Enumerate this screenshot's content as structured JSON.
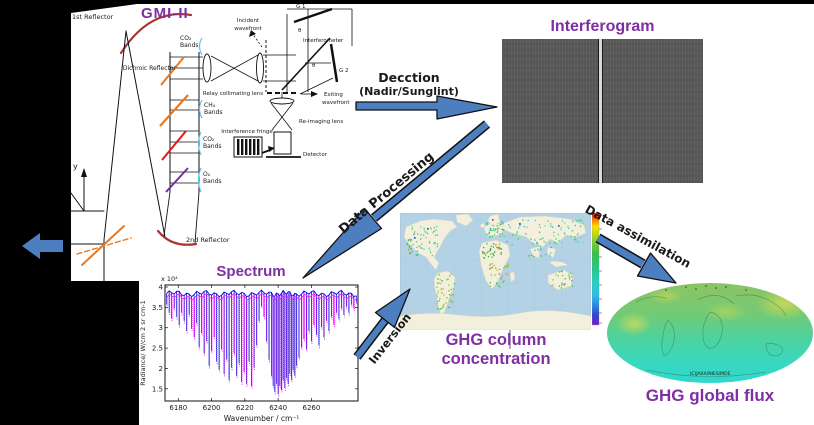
{
  "titles": {
    "interferogram": "Interferogram",
    "spectrum": "Spectrum",
    "ghg_column": "GHG column concentration",
    "ghg_flux": "GHG global flux"
  },
  "arrows": {
    "detection_line1": "Decction",
    "detection_line2": "(Nadir/Sunglint)",
    "data_processing": "Data Processing",
    "inversion": "Inversion",
    "assimilation": "Data assimilation"
  },
  "instrument": {
    "title": "GMI-II",
    "first_reflector": "1st Reflector",
    "second_reflector": "2nd Reflector",
    "dichroic_reflector": "Dichroic Reflector",
    "axis_y": "y",
    "bands": {
      "co2_top": [
        "CO₂",
        "Bands"
      ],
      "ch4": [
        "CH₄",
        "Bands"
      ],
      "co2_mid": [
        "CO₂",
        "Bands"
      ],
      "o2": [
        "O₂",
        "Bands"
      ]
    },
    "relay_lens": "Relay collimating lens",
    "incident": [
      "Incident",
      "wavefront"
    ],
    "exiting": [
      "Exiting",
      "wavefront"
    ],
    "interferometer": "Interferometer",
    "grating1": "G 1",
    "grating2": "G 2",
    "theta": "θ",
    "reimaging_lens": "Re-imaging lens",
    "fringe": "Interference fringe",
    "detector": "Detector"
  },
  "chart_data": {
    "type": "line",
    "title": "Spectrum",
    "xlabel": "Wavenumber / cm⁻¹",
    "ylabel": "Radiance/ W/cm 2 sr cm-1",
    "scale_label": "x 10⁴",
    "xlim": [
      6172,
      6288
    ],
    "ylim": [
      1.2,
      4.05
    ],
    "xticks": [
      6180,
      6200,
      6220,
      6240,
      6260
    ],
    "yticks": [
      1.5,
      2,
      2.5,
      3,
      3.5,
      4
    ],
    "baseline": 3.8,
    "colors": {
      "blue": "#0b0be0",
      "magenta": "#f816f8"
    },
    "lines": [
      [
        6173,
        3.5
      ],
      [
        6174.5,
        3.3
      ],
      [
        6176,
        3.15
      ],
      [
        6177.5,
        3.4
      ],
      [
        6179,
        3.2
      ],
      [
        6180.5,
        3.0
      ],
      [
        6182,
        3.3
      ],
      [
        6183.5,
        3.1
      ],
      [
        6185,
        2.85
      ],
      [
        6186.5,
        3.25
      ],
      [
        6188,
        2.9
      ],
      [
        6189.5,
        2.7
      ],
      [
        6191,
        3.05
      ],
      [
        6192.5,
        2.45
      ],
      [
        6194,
        2.8
      ],
      [
        6195.5,
        2.3
      ],
      [
        6197,
        2.6
      ],
      [
        6198.5,
        2.0
      ],
      [
        6200,
        2.35
      ],
      [
        6201.5,
        2.7
      ],
      [
        6203,
        2.1
      ],
      [
        6204.5,
        1.9
      ],
      [
        6206,
        2.4
      ],
      [
        6207.5,
        1.8
      ],
      [
        6209,
        2.15
      ],
      [
        6210.5,
        1.65
      ],
      [
        6212,
        1.95
      ],
      [
        6213.5,
        2.3
      ],
      [
        6215,
        1.75
      ],
      [
        6216.5,
        2.05
      ],
      [
        6218,
        1.6
      ],
      [
        6219.5,
        1.85
      ],
      [
        6221,
        1.55
      ],
      [
        6222.5,
        2.1
      ],
      [
        6224,
        1.5
      ],
      [
        6225.5,
        1.95
      ],
      [
        6227,
        2.5
      ],
      [
        6228.5,
        3.1
      ],
      [
        6230,
        3.45
      ],
      [
        6231.5,
        3.2
      ],
      [
        6233,
        2.6
      ],
      [
        6234.5,
        2.15
      ],
      [
        6236,
        1.75
      ],
      [
        6237,
        1.5
      ],
      [
        6238,
        1.35
      ],
      [
        6239,
        1.55
      ],
      [
        6240,
        1.3
      ],
      [
        6241,
        1.5
      ],
      [
        6242,
        1.4
      ],
      [
        6243,
        1.65
      ],
      [
        6244,
        1.45
      ],
      [
        6245,
        1.7
      ],
      [
        6246,
        1.55
      ],
      [
        6247,
        1.8
      ],
      [
        6248,
        1.65
      ],
      [
        6249,
        1.9
      ],
      [
        6250,
        1.75
      ],
      [
        6251,
        2.0
      ],
      [
        6252.5,
        2.2
      ],
      [
        6254,
        2.45
      ],
      [
        6255.5,
        2.65
      ],
      [
        6257,
        2.4
      ],
      [
        6258.5,
        2.85
      ],
      [
        6260,
        2.6
      ],
      [
        6261.5,
        3.0
      ],
      [
        6263,
        2.75
      ],
      [
        6264.5,
        2.5
      ],
      [
        6266,
        2.95
      ],
      [
        6267.5,
        2.7
      ],
      [
        6269,
        3.1
      ],
      [
        6270.5,
        2.85
      ],
      [
        6272,
        3.2
      ],
      [
        6273.5,
        3.0
      ],
      [
        6275,
        3.3
      ],
      [
        6276.5,
        3.15
      ],
      [
        6278,
        3.4
      ],
      [
        6279.5,
        3.25
      ],
      [
        6281,
        3.45
      ],
      [
        6282.5,
        3.3
      ],
      [
        6284,
        3.5
      ],
      [
        6285.5,
        3.4
      ],
      [
        6287,
        3.55
      ]
    ]
  },
  "map": {
    "seed": 7,
    "scatter_clusters": [
      {
        "name": "north-america",
        "x": [
          8,
          38
        ],
        "y": [
          12,
          42
        ],
        "n": 55,
        "palette": [
          "#35c08a",
          "#2fd1b2",
          "#5ad8c0",
          "#6cc86c",
          "#49b8e0",
          "#3fbf6f"
        ]
      },
      {
        "name": "south-america",
        "x": [
          36,
          54
        ],
        "y": [
          58,
          98
        ],
        "n": 48,
        "palette": [
          "#44bb44",
          "#7ecc30",
          "#aacc28",
          "#58c838",
          "#d4b322"
        ]
      },
      {
        "name": "europe",
        "x": [
          84,
          104
        ],
        "y": [
          7,
          24
        ],
        "n": 42,
        "palette": [
          "#3fbf6f",
          "#2fd1b2",
          "#5fc85f",
          "#44bb44",
          "#55d0c0"
        ]
      },
      {
        "name": "north-africa",
        "x": [
          82,
          101
        ],
        "y": [
          28,
          45
        ],
        "n": 34,
        "palette": [
          "#28a528",
          "#3bb53b",
          "#52c230",
          "#2f9f4f"
        ]
      },
      {
        "name": "south-africa",
        "x": [
          87,
          108
        ],
        "y": [
          50,
          74
        ],
        "n": 34,
        "palette": [
          "#44bb44",
          "#96c428",
          "#dd9e22",
          "#58c838"
        ]
      },
      {
        "name": "asia",
        "x": [
          106,
          183
        ],
        "y": [
          6,
          32
        ],
        "n": 75,
        "palette": [
          "#5ad8c0",
          "#2fd1b2",
          "#6cc86c",
          "#49b8e0",
          "#44bb44",
          "#35c08a"
        ]
      },
      {
        "name": "south-asia",
        "x": [
          128,
          152
        ],
        "y": [
          30,
          44
        ],
        "n": 16,
        "palette": [
          "#44bb44",
          "#6cc86c",
          "#2fd1b2"
        ]
      },
      {
        "name": "australia",
        "x": [
          149,
          172
        ],
        "y": [
          57,
          75
        ],
        "n": 26,
        "palette": [
          "#44bb44",
          "#5fc85f",
          "#7ecc30"
        ]
      },
      {
        "name": "us-west-coast",
        "x": [
          6,
          11
        ],
        "y": [
          22,
          40
        ],
        "n": 10,
        "palette": [
          "#28a528",
          "#dd9e22",
          "#44bb44"
        ]
      }
    ],
    "special_dots": [
      [
        95,
        31,
        "#f0a020"
      ],
      [
        98,
        34,
        "#e87818"
      ],
      [
        89,
        55,
        "#e8a828"
      ],
      [
        41,
        79,
        "#d6c020"
      ],
      [
        92,
        6,
        "#e03030"
      ],
      [
        119,
        10,
        "#3050e0"
      ],
      [
        158,
        12,
        "#3050e0"
      ],
      [
        27,
        15,
        "#3050e0"
      ],
      [
        14,
        24,
        "#3050e0"
      ]
    ],
    "colorbar_stops": [
      [
        0,
        "#dd0000"
      ],
      [
        0.06,
        "#ff7a00"
      ],
      [
        0.12,
        "#ffe000"
      ],
      [
        0.22,
        "#9ed621"
      ],
      [
        0.36,
        "#35c146"
      ],
      [
        0.5,
        "#22c98d"
      ],
      [
        0.62,
        "#25d2c0"
      ],
      [
        0.73,
        "#2bc0e6"
      ],
      [
        0.83,
        "#2b86e6"
      ],
      [
        0.91,
        "#2f45d2"
      ],
      [
        1,
        "#7a1fc9"
      ]
    ]
  },
  "globe": {
    "credit": "(C)JAXA/NIES/MOE"
  },
  "colors": {
    "arrow_blue": "#4d7ebf",
    "title_purple": "#7d2fa3",
    "ocean": "#b4d2e6",
    "land": "#f2efdc",
    "interferogram_gray": "#585858"
  }
}
